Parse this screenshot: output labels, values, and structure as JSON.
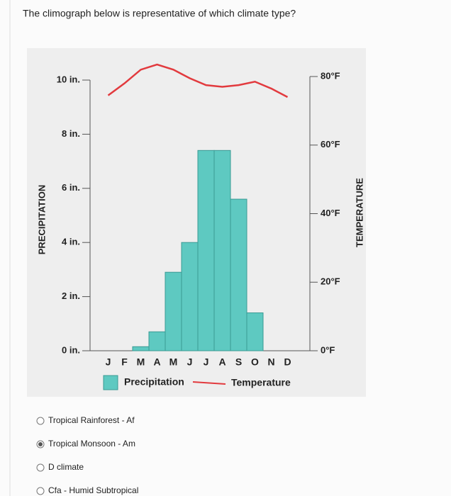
{
  "question": "The climograph below is representative of which climate type?",
  "chart_data": {
    "type": "bar",
    "y_label": "PRECIPITATION",
    "y2_label": "TEMPERATURE",
    "categories": [
      "J",
      "F",
      "M",
      "A",
      "M",
      "J",
      "J",
      "A",
      "S",
      "O",
      "N",
      "D"
    ],
    "series": [
      {
        "name": "Precipitation",
        "type": "bar",
        "color": "#5ec9c1",
        "values": [
          0,
          0,
          0.15,
          0.7,
          2.9,
          4.0,
          7.4,
          7.4,
          5.6,
          1.4,
          0,
          0
        ]
      },
      {
        "name": "Temperature",
        "type": "line",
        "axis": "y2",
        "color": "#e23a3e",
        "values": [
          74.5,
          78,
          82,
          83.5,
          82,
          79.5,
          77.5,
          77,
          77.5,
          78.5,
          76.5,
          74
        ]
      }
    ],
    "ylim": [
      0,
      10
    ],
    "yticks": [
      {
        "value": 0,
        "label": "0 in."
      },
      {
        "value": 2,
        "label": "2 in."
      },
      {
        "value": 4,
        "label": "4 in."
      },
      {
        "value": 6,
        "label": "6 in."
      },
      {
        "value": 8,
        "label": "8 in."
      },
      {
        "value": 10,
        "label": "10 in."
      }
    ],
    "y2lim": [
      0,
      80
    ],
    "y2ticks": [
      {
        "value": 0,
        "label": "0°F"
      },
      {
        "value": 20,
        "label": "20°F"
      },
      {
        "value": 40,
        "label": "40°F"
      },
      {
        "value": 60,
        "label": "60°F"
      },
      {
        "value": 80,
        "label": "80°F"
      }
    ]
  },
  "options": [
    "Tropical Rainforest - Af",
    "Tropical Monsoon - Am",
    "D climate",
    "Cfa - Humid Subtropical"
  ],
  "selected": 1
}
